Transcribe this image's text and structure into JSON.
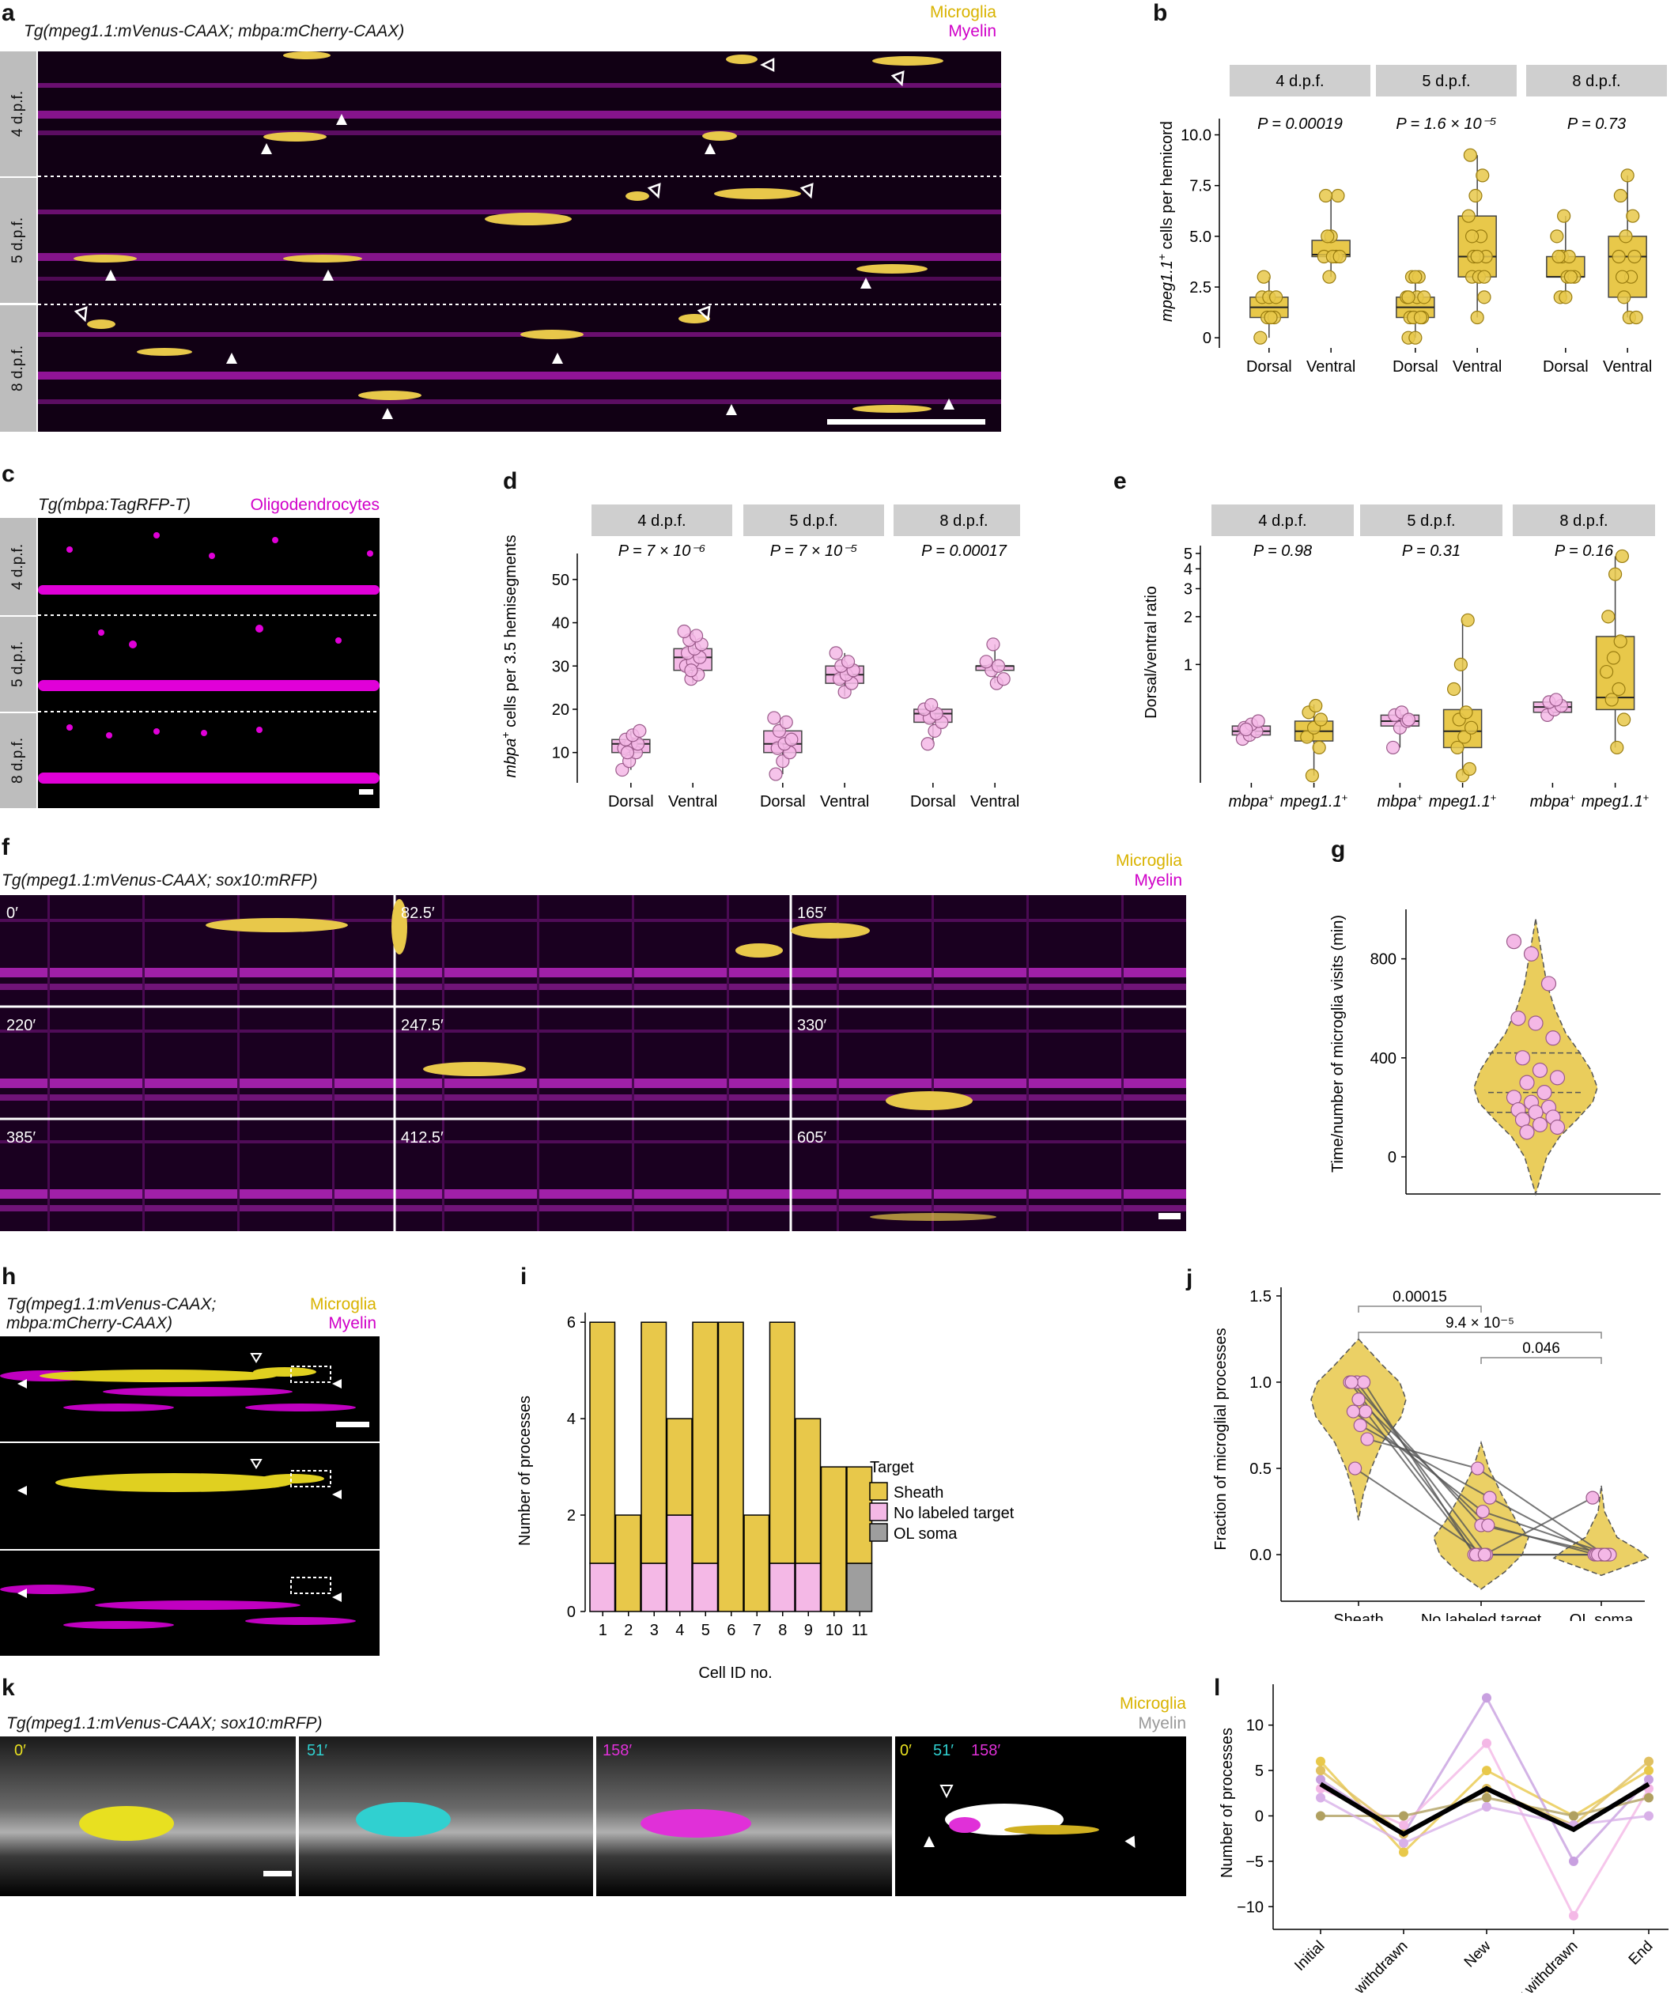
{
  "panels": {
    "a": {
      "letter": "a",
      "caption": "Tg(mpeg1.1:mVenus-CAAX; mbpa:mCherry-CAAX)",
      "legend1": "Microglia",
      "legend2": "Myelin",
      "rows": [
        "4 d.p.f.",
        "5 d.p.f.",
        "8 d.p.f."
      ]
    },
    "b": {
      "letter": "b"
    },
    "c": {
      "letter": "c",
      "caption": "Tg(mbpa:TagRFP-T)",
      "legend1": "Oligodendrocytes",
      "rows": [
        "4 d.p.f.",
        "5 d.p.f.",
        "8 d.p.f."
      ]
    },
    "d": {
      "letter": "d"
    },
    "e": {
      "letter": "e"
    },
    "f": {
      "letter": "f",
      "caption": "Tg(mpeg1.1:mVenus-CAAX; sox10:mRFP)",
      "legend1": "Microglia",
      "legend2": "Myelin",
      "frames": [
        "0′",
        "82.5′",
        "165′",
        "220′",
        "247.5′",
        "330′",
        "385′",
        "412.5′",
        "605′"
      ]
    },
    "g": {
      "letter": "g"
    },
    "h": {
      "letter": "h",
      "caption_line1": "Tg(mpeg1.1:mVenus-CAAX;",
      "caption_line2": "mbpa:mCherry-CAAX)",
      "legend1": "Microglia",
      "legend2": "Myelin"
    },
    "i": {
      "letter": "i"
    },
    "j": {
      "letter": "j"
    },
    "k": {
      "letter": "k",
      "caption": "Tg(mpeg1.1:mVenus-CAAX; sox10:mRFP)",
      "legend1": "Microglia",
      "legend2": "Myelin",
      "frames": [
        "0′",
        "51′",
        "158′"
      ],
      "merge_labels": [
        "0′",
        "51′",
        "158′"
      ]
    },
    "l": {
      "letter": "l"
    }
  },
  "colors": {
    "microglia": "#e8c84a",
    "myelin": "#d000c8",
    "pink": "#f4b8e6",
    "gray": "#9e9e9e"
  },
  "chart_data": [
    {
      "id": "b",
      "type": "box",
      "facets": [
        "4 d.p.f.",
        "5 d.p.f.",
        "8 d.p.f."
      ],
      "categories": [
        "Dorsal",
        "Ventral"
      ],
      "ylabel_pre": "mpeg1.1",
      "ylabel_sup": "+",
      "ylabel_post": " cells per hemicord",
      "yticks": [
        0,
        2.5,
        5.0,
        7.5,
        10.0
      ],
      "ytick_labels": [
        "0",
        "2.5",
        "5.0",
        "7.5",
        "10.0"
      ],
      "ylim": [
        -0.5,
        10.8
      ],
      "pvalues": [
        "P = 0.00019",
        "P = 1.6 × 10⁻⁵",
        "P = 0.73"
      ],
      "boxes": [
        {
          "facet": 0,
          "cat": 0,
          "q1": 1.0,
          "median": 1.5,
          "q3": 2.0,
          "min": 0,
          "max": 3
        },
        {
          "facet": 0,
          "cat": 1,
          "q1": 4.0,
          "median": 4.1,
          "q3": 4.8,
          "min": 3,
          "max": 7
        },
        {
          "facet": 1,
          "cat": 0,
          "q1": 1.0,
          "median": 1.5,
          "q3": 2.0,
          "min": 0,
          "max": 3
        },
        {
          "facet": 1,
          "cat": 1,
          "q1": 3.0,
          "median": 4.0,
          "q3": 6.0,
          "min": 1,
          "max": 9
        },
        {
          "facet": 2,
          "cat": 0,
          "q1": 3.0,
          "median": 3.0,
          "q3": 4.0,
          "min": 2,
          "max": 6
        },
        {
          "facet": 2,
          "cat": 1,
          "q1": 2.0,
          "median": 4.0,
          "q3": 5.0,
          "min": 1,
          "max": 8
        }
      ],
      "points": [
        [
          [
            0,
            1,
            1,
            2,
            2,
            2,
            3,
            1
          ]
        ],
        [
          [
            3,
            4,
            4,
            5,
            7,
            7,
            4,
            4,
            5
          ]
        ],
        [
          [
            0,
            0,
            1,
            1,
            2,
            2,
            3,
            3,
            2,
            1,
            1,
            2,
            3
          ]
        ],
        [
          [
            1,
            2,
            3,
            3,
            4,
            4,
            5,
            6,
            7,
            8,
            9,
            4,
            3,
            5
          ]
        ],
        [
          [
            2,
            3,
            3,
            4,
            4,
            5,
            6,
            3,
            4,
            2
          ]
        ],
        [
          [
            1,
            1,
            2,
            3,
            4,
            5,
            6,
            7,
            8,
            4,
            3
          ]
        ]
      ]
    },
    {
      "id": "d",
      "type": "box",
      "facets": [
        "4 d.p.f.",
        "5 d.p.f.",
        "8 d.p.f."
      ],
      "categories": [
        "Dorsal",
        "Ventral"
      ],
      "ylabel_pre": "mbpa",
      "ylabel_sup": "+",
      "ylabel_post": " cells per 3.5 hemisegments",
      "yticks": [
        10,
        20,
        30,
        40,
        50
      ],
      "ytick_labels": [
        "10",
        "20",
        "30",
        "40",
        "50"
      ],
      "ylim": [
        3,
        56
      ],
      "pvalues": [
        "P = 7 × 10⁻⁶",
        "P = 7 × 10⁻⁵",
        "P = 0.00017"
      ],
      "boxes": [
        {
          "facet": 0,
          "cat": 0,
          "q1": 10,
          "median": 12,
          "q3": 13,
          "min": 6,
          "max": 15
        },
        {
          "facet": 0,
          "cat": 1,
          "q1": 29,
          "median": 32,
          "q3": 34,
          "min": 26,
          "max": 38
        },
        {
          "facet": 1,
          "cat": 0,
          "q1": 10,
          "median": 12,
          "q3": 15,
          "min": 5,
          "max": 18
        },
        {
          "facet": 1,
          "cat": 1,
          "q1": 26,
          "median": 28,
          "q3": 30,
          "min": 23,
          "max": 33
        },
        {
          "facet": 2,
          "cat": 0,
          "q1": 17,
          "median": 19,
          "q3": 20,
          "min": 12,
          "max": 21
        },
        {
          "facet": 2,
          "cat": 1,
          "q1": 29,
          "median": 30,
          "q3": 30,
          "min": 26,
          "max": 35
        }
      ],
      "points": [
        [
          [
            6,
            8,
            10,
            11,
            12,
            12,
            13,
            14,
            15,
            10
          ]
        ],
        [
          [
            27,
            28,
            30,
            31,
            32,
            33,
            34,
            35,
            36,
            37,
            38,
            29
          ]
        ],
        [
          [
            5,
            8,
            10,
            11,
            12,
            13,
            15,
            17,
            18
          ]
        ],
        [
          [
            24,
            26,
            27,
            28,
            29,
            30,
            31,
            33
          ]
        ],
        [
          [
            12,
            15,
            17,
            18,
            19,
            20,
            21
          ]
        ],
        [
          [
            26,
            27,
            29,
            30,
            31,
            35
          ]
        ]
      ]
    },
    {
      "id": "e",
      "type": "box",
      "facets": [
        "4 d.p.f.",
        "5 d.p.f.",
        "8 d.p.f."
      ],
      "categories": [
        "mbpa",
        "mpeg1.1"
      ],
      "category_sup": "+",
      "ylabel": "Dorsal/ventral ratio",
      "yticks": [
        1,
        2,
        3,
        4,
        5
      ],
      "ytick_labels": [
        "1",
        "2",
        "3",
        "4",
        "5"
      ],
      "ylim": [
        0.18,
        5.6
      ],
      "scale": "log",
      "pvalues": [
        "P = 0.98",
        "P = 0.31",
        "P = 0.16"
      ],
      "boxes": [
        {
          "facet": 0,
          "cat": 0,
          "q1": 0.36,
          "median": 0.38,
          "q3": 0.41,
          "min": 0.33,
          "max": 0.45
        },
        {
          "facet": 0,
          "cat": 1,
          "q1": 0.33,
          "median": 0.38,
          "q3": 0.44,
          "min": 0.2,
          "max": 0.56
        },
        {
          "facet": 1,
          "cat": 0,
          "q1": 0.41,
          "median": 0.44,
          "q3": 0.48,
          "min": 0.3,
          "max": 0.52
        },
        {
          "facet": 1,
          "cat": 1,
          "q1": 0.3,
          "median": 0.38,
          "q3": 0.52,
          "min": 0.2,
          "max": 1.9
        },
        {
          "facet": 2,
          "cat": 0,
          "q1": 0.5,
          "median": 0.54,
          "q3": 0.58,
          "min": 0.47,
          "max": 0.62
        },
        {
          "facet": 2,
          "cat": 1,
          "q1": 0.52,
          "median": 0.62,
          "q3": 1.5,
          "min": 0.3,
          "max": 4.8
        }
      ],
      "points": [
        [
          [
            0.34,
            0.36,
            0.38,
            0.4,
            0.42,
            0.44,
            0.39
          ]
        ],
        [
          [
            0.2,
            0.3,
            0.35,
            0.4,
            0.45,
            0.5,
            0.55
          ]
        ],
        [
          [
            0.3,
            0.4,
            0.44,
            0.48,
            0.5,
            0.45
          ]
        ],
        [
          [
            0.2,
            0.22,
            0.3,
            0.35,
            0.4,
            0.45,
            0.5,
            0.7,
            1.0,
            1.9
          ]
        ],
        [
          [
            0.48,
            0.52,
            0.55,
            0.58,
            0.6
          ]
        ],
        [
          [
            0.3,
            0.45,
            0.6,
            0.7,
            0.9,
            1.1,
            1.4,
            2.0,
            3.7,
            4.8
          ]
        ]
      ]
    },
    {
      "id": "g",
      "type": "violin",
      "ylabel": "Time/number of microglia visits (min)",
      "yticks": [
        0,
        400,
        800
      ],
      "ytick_labels": [
        "0",
        "400",
        "800"
      ],
      "ylim": [
        -150,
        1000
      ],
      "quartiles": [
        180,
        260,
        420
      ],
      "points": [
        870,
        820,
        700,
        560,
        540,
        480,
        400,
        350,
        320,
        300,
        260,
        240,
        220,
        200,
        190,
        180,
        160,
        150,
        130,
        120,
        100
      ]
    },
    {
      "id": "i",
      "type": "bar",
      "stacked": true,
      "categories": [
        "1",
        "2",
        "3",
        "4",
        "5",
        "6",
        "7",
        "8",
        "9",
        "10",
        "11"
      ],
      "xlabel": "Cell ID no.",
      "ylabel": "Number of processes",
      "yticks": [
        0,
        2,
        4,
        6
      ],
      "ytick_labels": [
        "0",
        "2",
        "4",
        "6"
      ],
      "ylim": [
        0,
        6.2
      ],
      "legend_title": "Target",
      "series": [
        {
          "name": "OL soma",
          "values": [
            0,
            0,
            0,
            0,
            0,
            0,
            0,
            0,
            0,
            0,
            1
          ]
        },
        {
          "name": "No labeled target",
          "values": [
            1,
            0,
            1,
            2,
            1,
            0,
            0,
            1,
            1,
            0,
            0
          ]
        },
        {
          "name": "Sheath",
          "values": [
            5,
            2,
            5,
            2,
            5,
            6,
            2,
            5,
            3,
            3,
            2
          ]
        }
      ],
      "legend_order": [
        "Sheath",
        "No labeled target",
        "OL soma"
      ]
    },
    {
      "id": "j",
      "type": "violin",
      "categories": [
        "Sheath",
        "No labeled target",
        "OL soma"
      ],
      "ylabel": "Fraction of microglial processes",
      "yticks": [
        0.0,
        0.5,
        1.0,
        1.5
      ],
      "ytick_labels": [
        "0.0",
        "0.5",
        "1.0",
        "1.5"
      ],
      "ylim": [
        -0.27,
        1.55
      ],
      "brackets": [
        {
          "from": 0,
          "to": 1,
          "label": "0.00015"
        },
        {
          "from": 0,
          "to": 2,
          "label": "9.4 × 10⁻⁵"
        },
        {
          "from": 1,
          "to": 2,
          "label": "0.046"
        }
      ],
      "points": [
        [
          1.0,
          1.0,
          1.0,
          1.0,
          0.9,
          0.83,
          0.83,
          0.75,
          0.67,
          0.5
        ],
        [
          0.0,
          0.0,
          0.0,
          0.17,
          0.17,
          0.0,
          0.25,
          0.33,
          0.5,
          0.0
        ],
        [
          0.0,
          0.0,
          0.0,
          0.0,
          0.0,
          0.0,
          0.0,
          0.0,
          0.0,
          0.33
        ]
      ]
    },
    {
      "id": "l",
      "type": "line",
      "categories": [
        "Initial",
        "Init. withdrawn",
        "New",
        "New withdrawn",
        "End"
      ],
      "ylabel": "Number of processes",
      "yticks": [
        -10,
        -5,
        0,
        5,
        10
      ],
      "ytick_labels": [
        "−10",
        "−5",
        "0",
        "5",
        "10"
      ],
      "ylim": [
        -12.5,
        14.5
      ],
      "series": [
        {
          "name": "mean",
          "color": "#000000",
          "values": [
            3.5,
            -2,
            3,
            -1.5,
            3.5
          ]
        },
        {
          "name": "c1",
          "color": "#e8c84a",
          "values": [
            6,
            -4,
            5,
            0,
            5
          ]
        },
        {
          "name": "c2",
          "color": "#c8a0e0",
          "values": [
            4,
            -2,
            13,
            -5,
            4
          ]
        },
        {
          "name": "c3",
          "color": "#f4b8e6",
          "values": [
            3,
            -1,
            8,
            -11,
            3
          ]
        },
        {
          "name": "c4",
          "color": "#b0a060",
          "values": [
            0,
            0,
            2,
            0,
            2
          ]
        },
        {
          "name": "c5",
          "color": "#e0c060",
          "values": [
            5,
            -2,
            3,
            -1,
            6
          ]
        },
        {
          "name": "c6",
          "color": "#d8b0e8",
          "values": [
            2,
            -3,
            1,
            -1,
            0
          ]
        }
      ]
    }
  ]
}
